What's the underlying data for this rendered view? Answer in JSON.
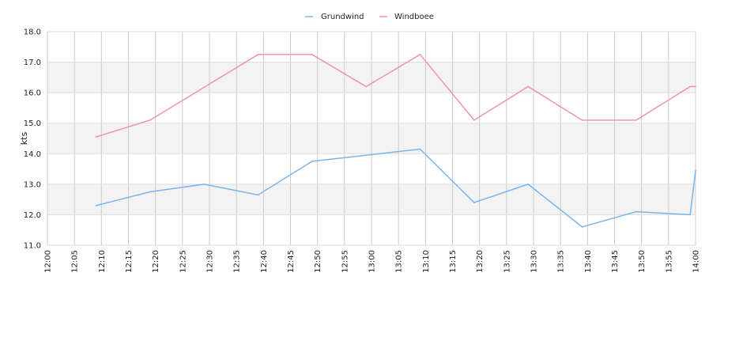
{
  "chart_data": {
    "type": "line",
    "x": [
      "12:09",
      "12:19",
      "12:29",
      "12:39",
      "12:49",
      "12:59",
      "13:09",
      "13:19",
      "13:29",
      "13:39",
      "13:49",
      "13:59",
      "14:00"
    ],
    "series": [
      {
        "name": "Grundwind",
        "color": "#7cb5ec",
        "values": [
          12.3,
          12.75,
          13.0,
          12.65,
          13.75,
          13.95,
          14.15,
          12.4,
          13.0,
          11.6,
          12.1,
          12.0,
          13.45
        ]
      },
      {
        "name": "Windboee",
        "color": "#f090c0",
        "values": [
          14.55,
          15.1,
          null,
          17.25,
          17.25,
          16.2,
          17.25,
          15.1,
          16.2,
          15.1,
          15.1,
          16.2,
          16.2
        ]
      }
    ],
    "x_tick_labels": [
      "12:00",
      "12:05",
      "12:10",
      "12:15",
      "12:20",
      "12:25",
      "12:30",
      "12:35",
      "12:40",
      "12:45",
      "12:50",
      "12:55",
      "13:00",
      "13:05",
      "13:10",
      "13:15",
      "13:20",
      "13:25",
      "13:30",
      "13:35",
      "13:40",
      "13:45",
      "13:50",
      "13:55",
      "14:00"
    ],
    "y_tick_labels": [
      "11.0",
      "12.0",
      "13.0",
      "14.0",
      "15.0",
      "16.0",
      "17.0",
      "18.0"
    ],
    "xlim": [
      "12:00",
      "14:00"
    ],
    "ylim": [
      11.0,
      18.0
    ],
    "ylabel": "kts",
    "xlabel": "",
    "grid": true,
    "legend_position": "top-center"
  }
}
